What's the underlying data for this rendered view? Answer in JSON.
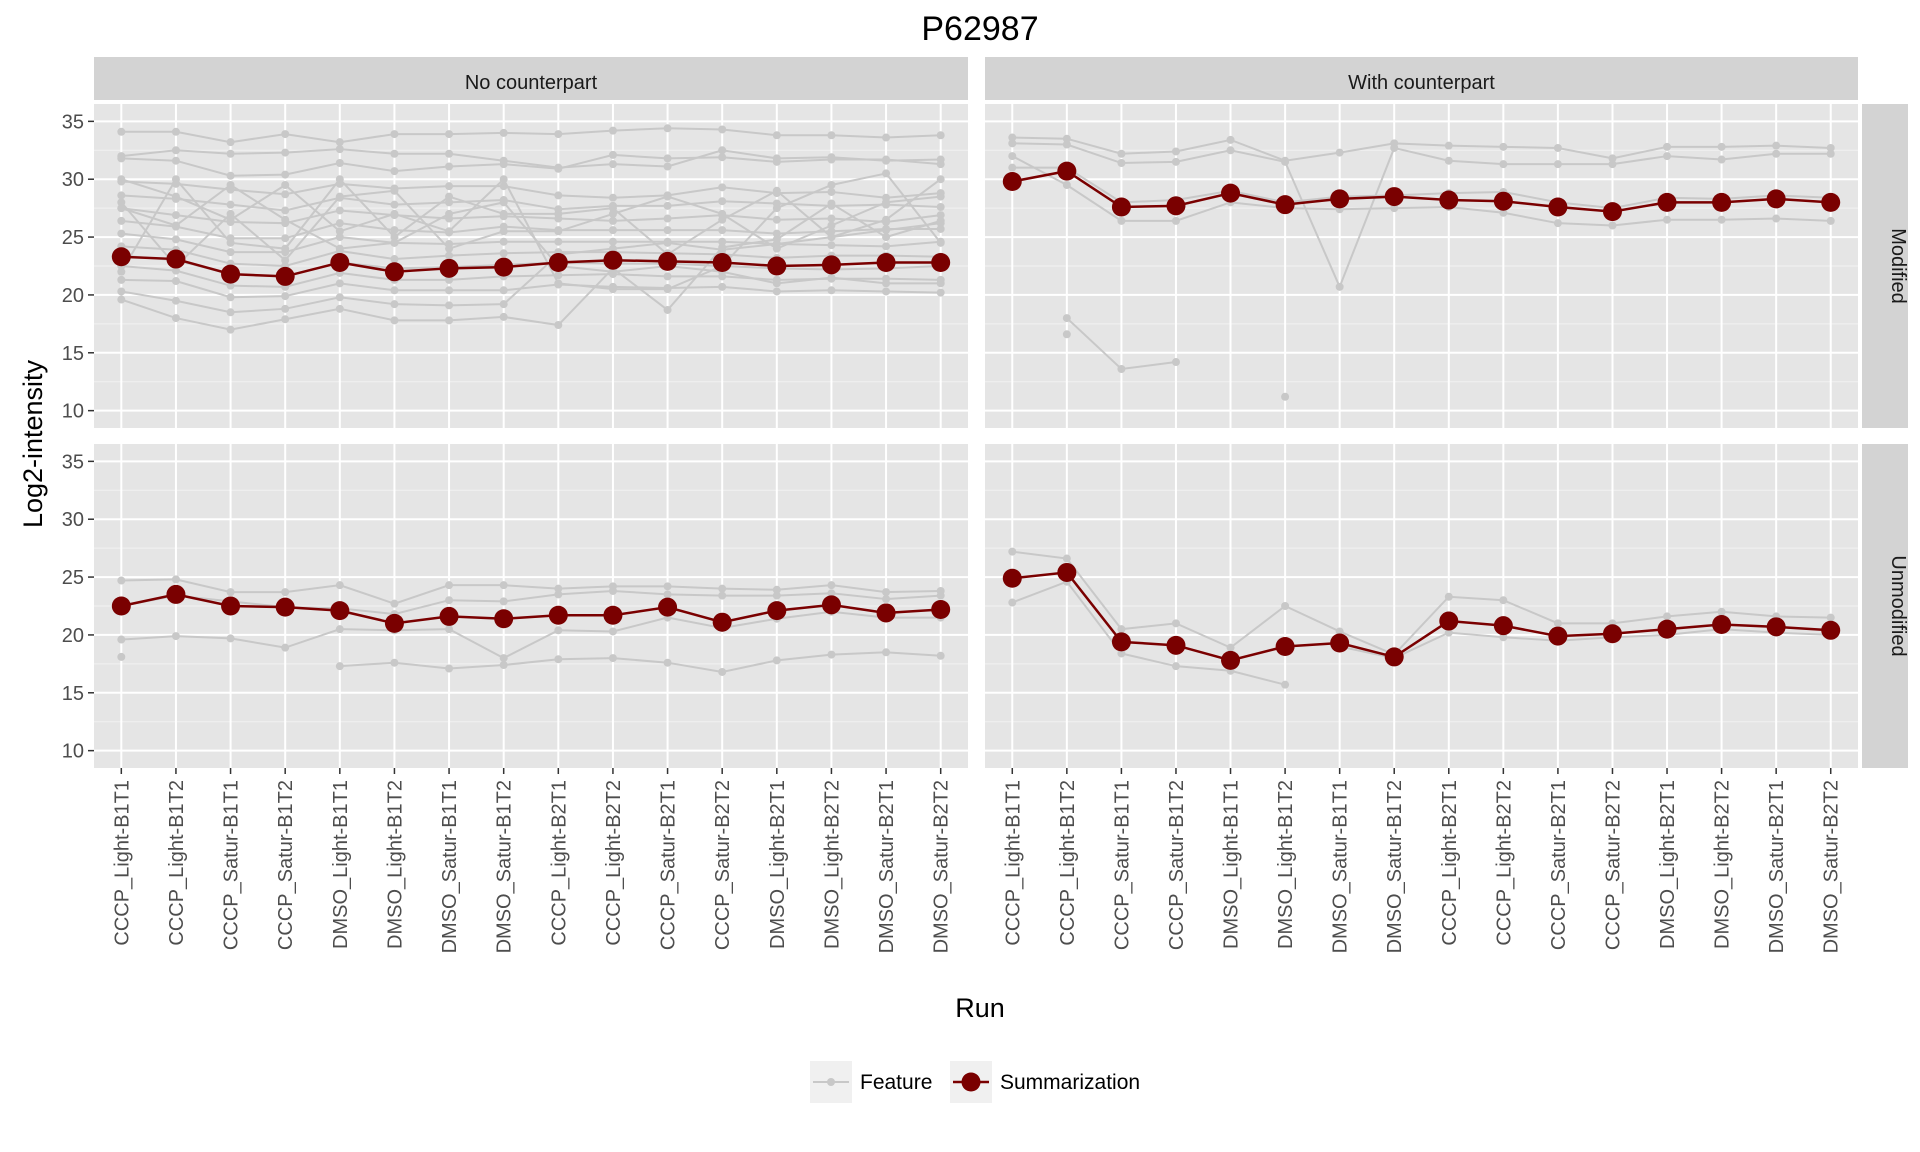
{
  "chart_data": {
    "type": "line",
    "title": "P62987",
    "xlabel": "Run",
    "ylabel": "Log2-intensity",
    "ylim": [
      8.5,
      36.5
    ],
    "yticks": [
      10,
      15,
      20,
      25,
      30,
      35
    ],
    "runs": [
      "CCCP_Light-B1T1",
      "CCCP_Light-B1T2",
      "CCCP_Satur-B1T1",
      "CCCP_Satur-B1T2",
      "DMSO_Light-B1T1",
      "DMSO_Light-B1T2",
      "DMSO_Satur-B1T1",
      "DMSO_Satur-B1T2",
      "CCCP_Light-B2T1",
      "CCCP_Light-B2T2",
      "CCCP_Satur-B2T1",
      "CCCP_Satur-B2T2",
      "DMSO_Light-B2T1",
      "DMSO_Light-B2T2",
      "DMSO_Satur-B2T1",
      "DMSO_Satur-B2T2"
    ],
    "columns": [
      "No counterpart",
      "With counterpart"
    ],
    "rows": [
      "Modified",
      "Unmodified"
    ],
    "grid": true,
    "legend": {
      "position": "bottom",
      "entries": [
        {
          "name": "Feature",
          "color": "#c8c8c8"
        },
        {
          "name": "Summarization",
          "color": "#7a0000"
        }
      ]
    },
    "colors": {
      "feature": "#c8c8c8",
      "summarization": "#7a0000",
      "panel_bg": "#e5e5e5",
      "strip_bg": "#d3d3d3"
    },
    "panels": [
      {
        "column": "No counterpart",
        "row": "Modified",
        "summarization": [
          23.3,
          23.1,
          21.8,
          21.6,
          22.8,
          22.0,
          22.3,
          22.4,
          22.8,
          23.0,
          22.9,
          22.8,
          22.5,
          22.6,
          22.8,
          22.8
        ],
        "features": [
          [
            34.1,
            34.1,
            33.2,
            33.9,
            33.2,
            33.9,
            33.9,
            34.0,
            33.9,
            34.2,
            34.4,
            34.3,
            33.8,
            33.8,
            33.6,
            33.8
          ],
          [
            32.0,
            32.5,
            32.2,
            32.3,
            32.6,
            32.2,
            32.2,
            31.6,
            31.0,
            31.3,
            31.1,
            32.5,
            31.8,
            31.9,
            31.6,
            31.7
          ],
          [
            31.8,
            31.6,
            30.3,
            30.4,
            31.4,
            30.7,
            31.1,
            31.3,
            30.9,
            32.1,
            31.8,
            31.9,
            31.5,
            31.7,
            31.7,
            31.3
          ],
          [
            29.8,
            29.6,
            29.1,
            28.7,
            29.6,
            29.2,
            29.4,
            29.4,
            28.6,
            28.4,
            28.6,
            29.3,
            28.8,
            28.9,
            28.4,
            28.8
          ],
          [
            28.6,
            28.3,
            27.8,
            27.3,
            28.4,
            27.8,
            28.0,
            28.2,
            27.4,
            27.7,
            27.7,
            28.1,
            27.9,
            27.7,
            27.8,
            27.6
          ],
          [
            27.5,
            26.9,
            26.3,
            26.2,
            27.3,
            26.9,
            26.6,
            26.8,
            26.6,
            26.4,
            26.6,
            26.9,
            26.5,
            26.6,
            26.3,
            26.9
          ],
          [
            26.4,
            25.9,
            24.9,
            24.9,
            26.2,
            25.6,
            25.4,
            25.9,
            25.6,
            25.6,
            25.6,
            25.6,
            25.3,
            25.5,
            25.7,
            25.7
          ],
          [
            25.3,
            24.8,
            23.7,
            23.7,
            25.0,
            24.5,
            24.4,
            24.6,
            24.6,
            24.6,
            24.6,
            24.6,
            24.4,
            24.3,
            24.2,
            24.6
          ],
          [
            24.2,
            23.9,
            22.7,
            22.5,
            23.8,
            23.1,
            23.4,
            23.6,
            23.7,
            23.7,
            23.6,
            23.5,
            23.2,
            23.4,
            23.4,
            23.3
          ],
          [
            23.4,
            23.0,
            21.8,
            21.6,
            22.8,
            22.3,
            22.4,
            22.6,
            22.8,
            22.7,
            22.7,
            22.5,
            22.3,
            22.2,
            22.3,
            22.5
          ],
          [
            22.5,
            22.1,
            20.8,
            20.7,
            21.9,
            21.3,
            21.3,
            21.6,
            21.7,
            21.8,
            21.6,
            21.6,
            21.3,
            21.4,
            21.4,
            21.3
          ],
          [
            21.3,
            21.2,
            19.8,
            19.9,
            21.0,
            20.4,
            20.4,
            20.4,
            20.9,
            20.7,
            20.6,
            20.7,
            20.3,
            20.4,
            20.3,
            20.2
          ],
          [
            20.3,
            19.5,
            18.5,
            18.8,
            19.8,
            19.2,
            19.1,
            19.2,
            23.5,
            24.0,
            24.5,
            23.9,
            24.4,
            25.0,
            25.6,
            26.2
          ],
          [
            19.6,
            18.0,
            17.0,
            17.9,
            18.8,
            17.8,
            17.8,
            18.1,
            17.4,
            22.3,
            18.7,
            24.1,
            24.8,
            27.9,
            25.0,
            26.4
          ],
          [
            30.0,
            28.5,
            26.5,
            29.5,
            25.5,
            27.0,
            25.5,
            30.0,
            21.0,
            20.5,
            20.5,
            22.5,
            27.5,
            29.5,
            30.5,
            24.5
          ],
          [
            22.0,
            30.0,
            24.5,
            24.0,
            30.0,
            25.0,
            28.5,
            27.0,
            27.0,
            27.5,
            23.5,
            26.5,
            29.0,
            25.0,
            26.5,
            30.0
          ],
          [
            28.0,
            22.5,
            27.0,
            23.0,
            28.5,
            29.0,
            24.0,
            25.5,
            25.5,
            27.0,
            28.5,
            27.0,
            24.0,
            26.0,
            28.0,
            28.5
          ],
          [
            27.5,
            26.0,
            29.5,
            26.5,
            24.0,
            24.5,
            27.0,
            28.0,
            22.5,
            22.0,
            22.5,
            22.0,
            21.0,
            21.5,
            21.0,
            21.0
          ]
        ]
      },
      {
        "column": "With counterpart",
        "row": "Modified",
        "summarization": [
          29.8,
          30.7,
          27.6,
          27.7,
          28.8,
          27.8,
          28.3,
          28.5,
          28.2,
          28.1,
          27.6,
          27.2,
          28.0,
          28.0,
          28.3,
          28.0
        ],
        "features": [
          [
            33.6,
            33.5,
            32.2,
            32.4,
            33.4,
            31.6,
            32.3,
            33.1,
            32.9,
            32.8,
            32.7,
            31.8,
            32.8,
            32.8,
            32.9,
            32.7
          ],
          [
            33.1,
            33.0,
            31.4,
            31.5,
            32.5,
            31.5,
            20.7,
            32.7,
            31.6,
            31.3,
            31.3,
            31.3,
            32.0,
            31.7,
            32.2,
            32.2
          ],
          [
            32.0,
            29.5,
            26.4,
            26.4,
            28.0,
            27.5,
            27.4,
            27.5,
            27.6,
            27.1,
            26.2,
            26.0,
            26.5,
            26.5,
            26.6,
            26.4
          ],
          [
            31.0,
            31.0,
            28.0,
            28.2,
            29.0,
            28.0,
            28.5,
            28.6,
            28.8,
            28.9,
            28.0,
            27.5,
            28.4,
            28.3,
            28.6,
            28.4
          ],
          [
            null,
            18.0,
            13.6,
            14.2,
            null,
            null,
            null,
            null,
            null,
            null,
            null,
            null,
            null,
            null,
            null,
            null
          ],
          [
            null,
            16.6,
            null,
            null,
            null,
            11.2,
            null,
            null,
            null,
            null,
            null,
            null,
            null,
            null,
            null,
            null
          ]
        ]
      },
      {
        "column": "No counterpart",
        "row": "Unmodified",
        "summarization": [
          22.5,
          23.5,
          22.5,
          22.4,
          22.1,
          21.0,
          21.6,
          21.4,
          21.7,
          21.7,
          22.4,
          21.1,
          22.1,
          22.6,
          21.9,
          22.2
        ],
        "features": [
          [
            24.7,
            24.8,
            23.7,
            23.7,
            24.3,
            22.7,
            24.3,
            24.3,
            24.0,
            24.2,
            24.2,
            24.0,
            23.9,
            24.3,
            23.7,
            23.8
          ],
          [
            22.5,
            23.4,
            22.9,
            22.4,
            22.3,
            21.8,
            23.0,
            22.9,
            23.5,
            23.8,
            23.5,
            23.4,
            23.4,
            23.6,
            23.1,
            23.4
          ],
          [
            19.6,
            19.9,
            19.7,
            18.9,
            20.5,
            20.4,
            20.5,
            18.0,
            20.4,
            20.3,
            21.5,
            20.6,
            21.4,
            22.0,
            21.5,
            21.5
          ],
          [
            18.1,
            null,
            null,
            null,
            17.3,
            17.6,
            17.1,
            17.4,
            17.9,
            18.0,
            17.6,
            16.8,
            17.8,
            18.3,
            18.5,
            18.2
          ]
        ]
      },
      {
        "column": "With counterpart",
        "row": "Unmodified",
        "summarization": [
          24.9,
          25.4,
          19.4,
          19.1,
          17.8,
          19.0,
          19.3,
          18.1,
          21.2,
          20.8,
          19.9,
          20.1,
          20.5,
          20.9,
          20.7,
          20.4
        ],
        "features": [
          [
            27.2,
            26.6,
            20.5,
            21.0,
            18.9,
            22.5,
            20.3,
            18.3,
            23.3,
            23.0,
            21.0,
            21.0,
            21.6,
            22.0,
            21.6,
            21.5
          ],
          [
            22.8,
            24.6,
            18.4,
            17.3,
            16.9,
            15.7,
            null,
            null,
            null,
            null,
            null,
            null,
            null,
            null,
            null,
            null
          ],
          [
            null,
            null,
            null,
            null,
            null,
            null,
            19.0,
            18.0,
            20.2,
            19.8,
            19.5,
            19.8,
            20.0,
            20.5,
            20.2,
            20.0
          ]
        ]
      }
    ]
  }
}
